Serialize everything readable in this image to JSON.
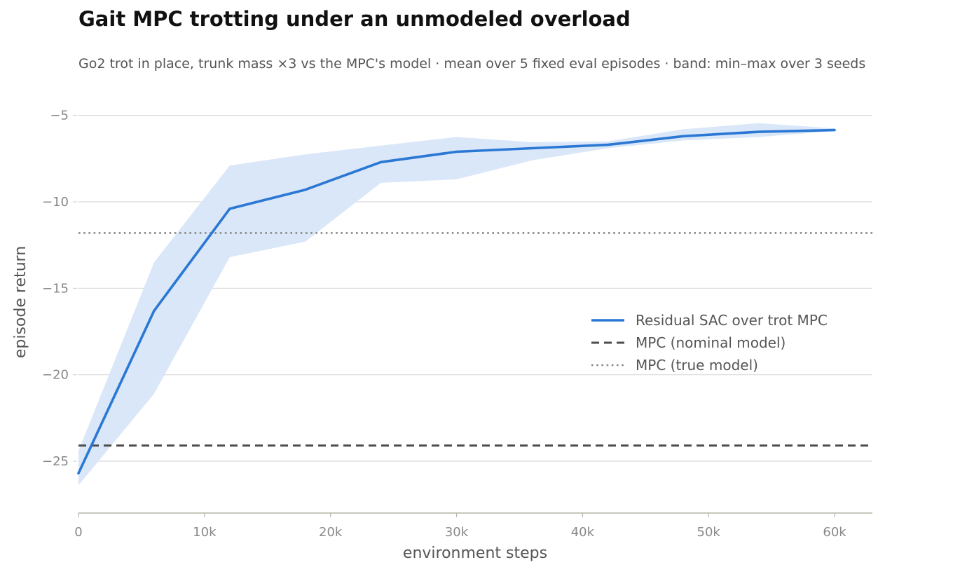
{
  "chart_data": {
    "type": "line",
    "title": "Gait MPC trotting under an unmodeled overload",
    "subtitle": "Go2 trot in place, trunk mass ×3 vs the MPC's model · mean over 5 fixed eval episodes · band: min–max over 3 seeds",
    "xlabel": "environment steps",
    "ylabel": "episode return",
    "xlim": [
      0,
      63000
    ],
    "ylim": [
      -28,
      -4
    ],
    "x_ticks": [
      0,
      10000,
      20000,
      30000,
      40000,
      50000,
      60000
    ],
    "x_tick_labels": [
      "0",
      "10k",
      "20k",
      "30k",
      "40k",
      "50k",
      "60k"
    ],
    "y_ticks": [
      -5,
      -10,
      -15,
      -20,
      -25
    ],
    "y_tick_labels": [
      "−5",
      "−10",
      "−15",
      "−20",
      "−25"
    ],
    "grid": "horizontal",
    "legend_position": "center-right",
    "series": [
      {
        "name": "Residual SAC over trot MPC",
        "color": "#2b78d4",
        "style": "solid",
        "x": [
          0,
          6000,
          12000,
          18000,
          24000,
          30000,
          36000,
          42000,
          48000,
          54000,
          60000
        ],
        "values": [
          -25.7,
          -16.3,
          -10.4,
          -9.3,
          -7.7,
          -7.1,
          -6.9,
          -6.7,
          -6.2,
          -5.95,
          -5.85
        ],
        "band_low": [
          -26.4,
          -21.1,
          -13.2,
          -12.3,
          -8.9,
          -8.7,
          -7.6,
          -6.9,
          -6.45,
          -6.25,
          -5.9
        ],
        "band_high": [
          -24.4,
          -13.5,
          -7.9,
          -7.25,
          -6.75,
          -6.25,
          -6.55,
          -6.5,
          -5.8,
          -5.45,
          -5.75
        ],
        "band_color": "#dae7f8"
      },
      {
        "name": "MPC (nominal model)",
        "color": "#4d4d4d",
        "style": "dashed",
        "constant": -24.1
      },
      {
        "name": "MPC (true model)",
        "color": "#888888",
        "style": "dotted",
        "constant": -11.8
      }
    ]
  }
}
